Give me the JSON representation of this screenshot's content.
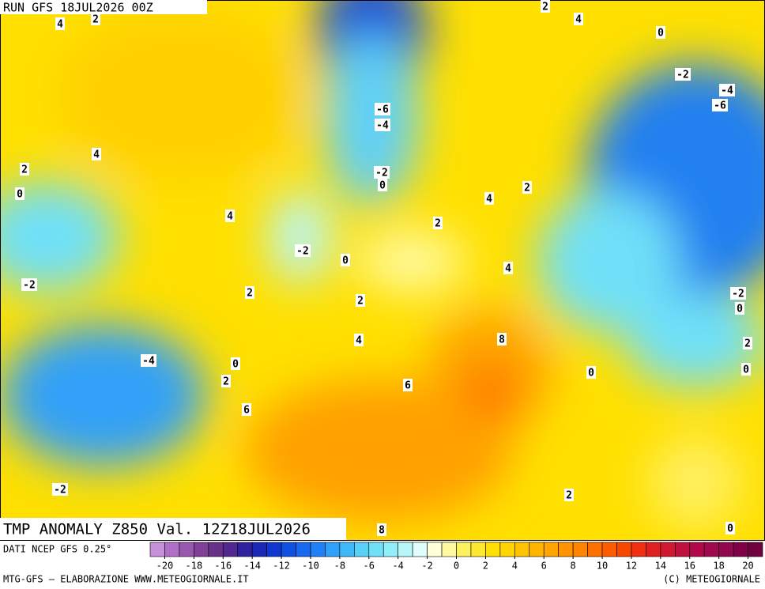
{
  "header": {
    "run": "RUN GFS 18JUL2026 00Z"
  },
  "map": {
    "title": "TMP ANOMALY Z850 Val. 12Z18JUL2026",
    "contour_labels": [
      "4",
      "2",
      "2",
      "4",
      "0",
      "-2",
      "-4",
      "-6",
      "-4",
      "-6",
      "4",
      "2",
      "-2",
      "0",
      "0",
      "2",
      "4",
      "4",
      "2",
      "-2",
      "0",
      "4",
      "-2",
      "2",
      "2",
      "-2",
      "0",
      "4",
      "8",
      "2",
      "-4",
      "0",
      "0",
      "0",
      "2",
      "6",
      "6",
      "-2",
      "2",
      "8",
      "0"
    ]
  },
  "colorbar": {
    "ticks": [
      -20,
      -18,
      -16,
      -14,
      -12,
      -10,
      -8,
      -6,
      -4,
      -2,
      0,
      2,
      4,
      6,
      8,
      10,
      12,
      14,
      16,
      18,
      20
    ],
    "range": [
      -21,
      21
    ],
    "colors": [
      "#c890d8",
      "#b070c8",
      "#9858b0",
      "#804098",
      "#683088",
      "#502890",
      "#3020a0",
      "#1c28b8",
      "#1038d0",
      "#1050e0",
      "#1868f0",
      "#2080f8",
      "#30a0f8",
      "#40b8f8",
      "#58d0f8",
      "#70e0f8",
      "#90eef8",
      "#b8f6f8",
      "#e0fcfc",
      "#ffffd8",
      "#fffaa0",
      "#fff060",
      "#ffe830",
      "#ffe000",
      "#ffd400",
      "#ffc400",
      "#ffb400",
      "#ffa400",
      "#ff9400",
      "#ff8400",
      "#ff7000",
      "#ff5c00",
      "#f84800",
      "#f03010",
      "#e02020",
      "#d01830",
      "#c01040",
      "#b00848",
      "#a00850",
      "#900850",
      "#800048",
      "#700040"
    ]
  },
  "footer": {
    "source": "DATI NCEP GFS 0.25°",
    "credit": "MTG-GFS – ELABORAZIONE WWW.METEOGIORNALE.IT",
    "copyright": "(C) METEOGIORNALE"
  }
}
